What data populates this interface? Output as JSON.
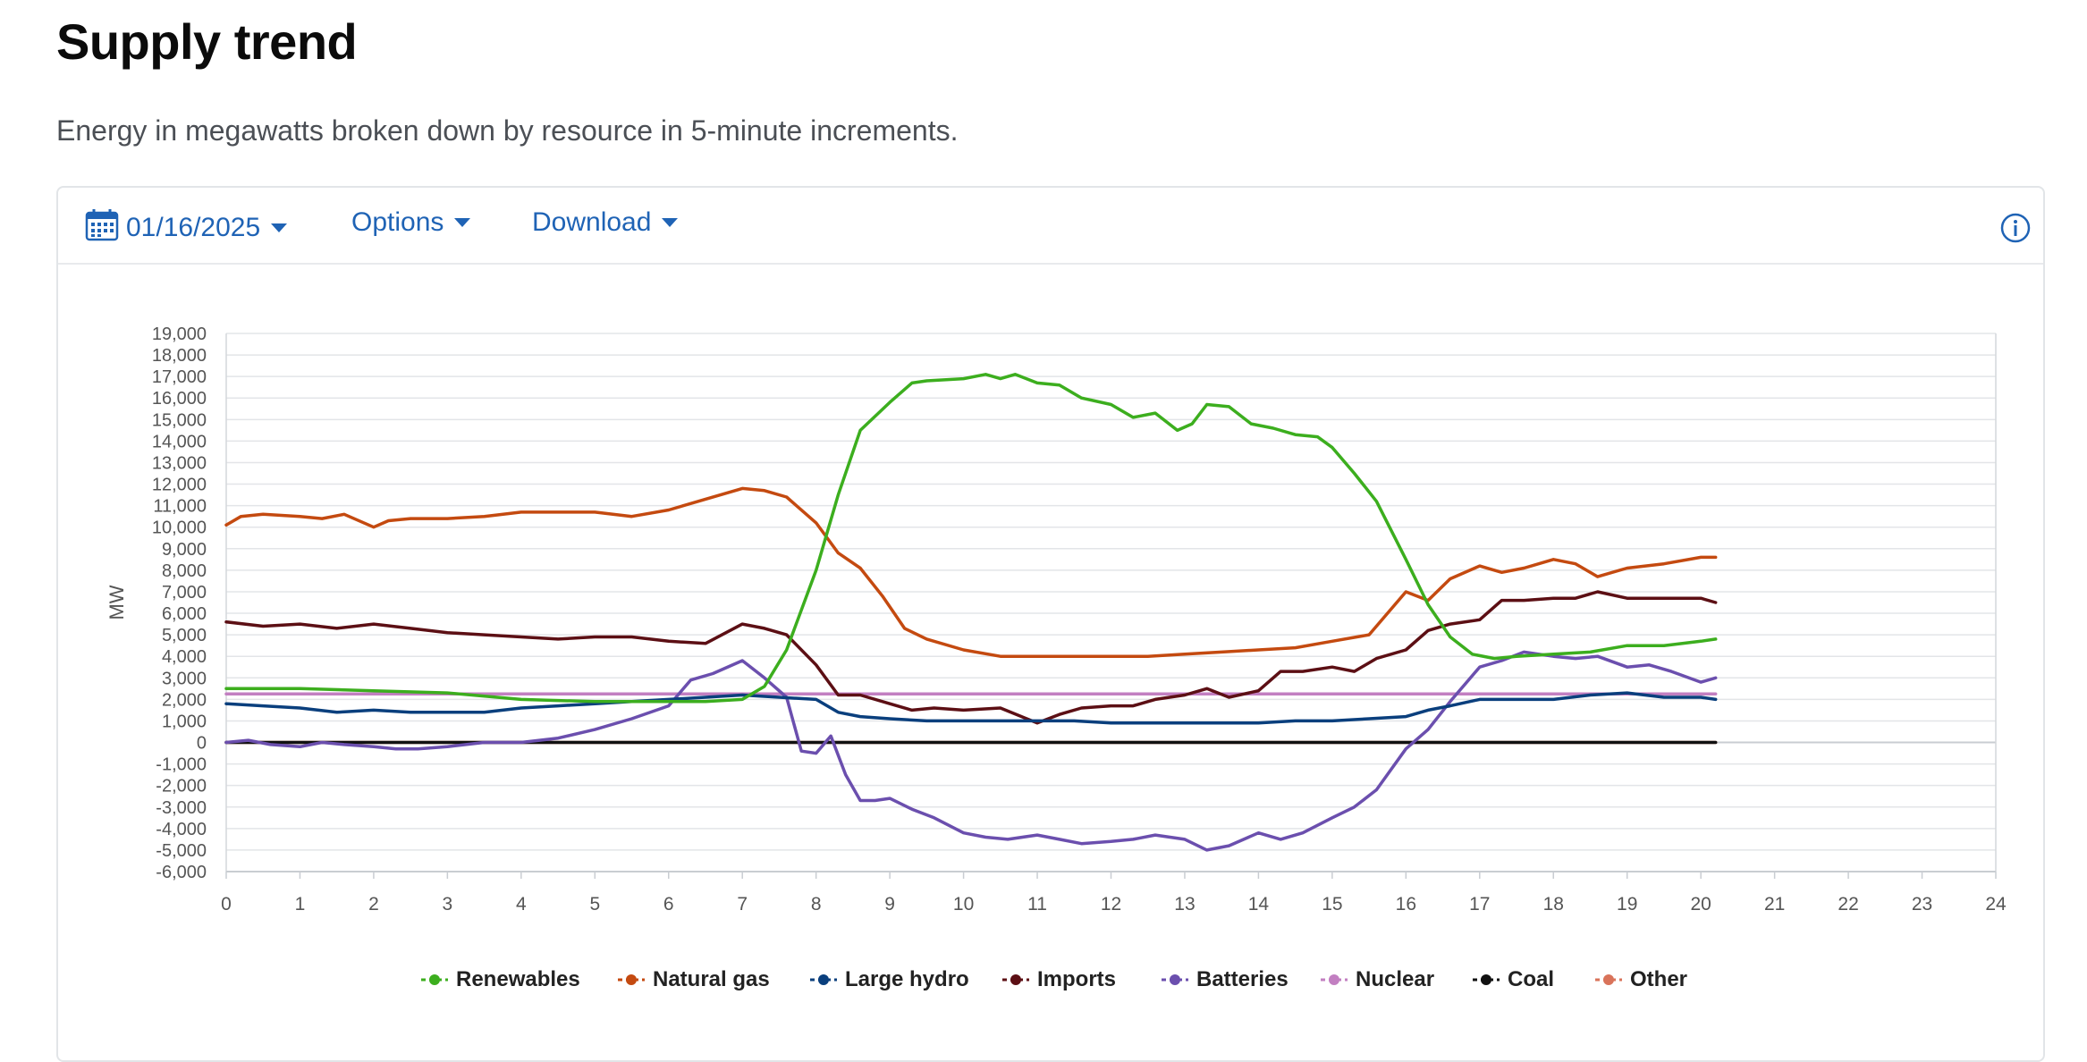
{
  "header": {
    "title": "Supply trend",
    "subtitle": "Energy in megawatts broken down by resource in 5-minute increments."
  },
  "toolbar": {
    "date": "01/16/2025",
    "options_label": "Options",
    "download_label": "Download",
    "accent_color": "#1f63b5"
  },
  "chart_data": {
    "type": "line",
    "title": "",
    "xlabel": "",
    "ylabel": "MW",
    "xlim": [
      0,
      24
    ],
    "ylim": [
      -6000,
      19000
    ],
    "x_ticks": [
      "0",
      "1",
      "2",
      "3",
      "4",
      "5",
      "6",
      "7",
      "8",
      "9",
      "10",
      "11",
      "12",
      "13",
      "14",
      "15",
      "16",
      "17",
      "18",
      "19",
      "20",
      "21",
      "22",
      "23",
      "24"
    ],
    "y_ticks": [
      "19,000",
      "18,000",
      "17,000",
      "16,000",
      "15,000",
      "14,000",
      "13,000",
      "12,000",
      "11,000",
      "10,000",
      "9,000",
      "8,000",
      "7,000",
      "6,000",
      "5,000",
      "4,000",
      "3,000",
      "2,000",
      "1,000",
      "0",
      "-1,000",
      "-2,000",
      "-3,000",
      "-4,000",
      "-5,000",
      "-6,000"
    ],
    "grid": true,
    "legend_position": "bottom-center",
    "series": [
      {
        "name": "Renewables",
        "color": "#3cae1e",
        "x": [
          0,
          1,
          2,
          3,
          4,
          5,
          6,
          6.5,
          7,
          7.3,
          7.6,
          8,
          8.3,
          8.6,
          9,
          9.3,
          9.5,
          10,
          10.3,
          10.5,
          10.7,
          11,
          11.3,
          11.6,
          12,
          12.3,
          12.6,
          12.9,
          13.1,
          13.3,
          13.6,
          13.9,
          14.2,
          14.5,
          14.8,
          15,
          15.3,
          15.6,
          16,
          16.3,
          16.6,
          16.9,
          17.2,
          17.5,
          18,
          18.5,
          19,
          19.5,
          20,
          20.2
        ],
        "y": [
          2500,
          2500,
          2400,
          2300,
          2000,
          1900,
          1900,
          1900,
          2000,
          2600,
          4300,
          8000,
          11500,
          14500,
          15800,
          16700,
          16800,
          16900,
          17100,
          16900,
          17100,
          16700,
          16600,
          16000,
          15700,
          15100,
          15300,
          14500,
          14800,
          15700,
          15600,
          14800,
          14600,
          14300,
          14200,
          13700,
          12500,
          11200,
          8500,
          6400,
          4900,
          4100,
          3900,
          4000,
          4100,
          4200,
          4500,
          4500,
          4700,
          4800
        ]
      },
      {
        "name": "Natural gas",
        "color": "#c44a10",
        "x": [
          0,
          0.2,
          0.5,
          1,
          1.3,
          1.6,
          2,
          2.2,
          2.5,
          3,
          3.5,
          4,
          4.5,
          5,
          5.5,
          6,
          6.5,
          7,
          7.3,
          7.6,
          8,
          8.3,
          8.6,
          8.9,
          9.2,
          9.5,
          10,
          10.5,
          11,
          11.5,
          12,
          12.5,
          13,
          13.5,
          14,
          14.5,
          15,
          15.5,
          16,
          16.3,
          16.6,
          17,
          17.3,
          17.6,
          18,
          18.3,
          18.6,
          19,
          19.5,
          20,
          20.2
        ],
        "y": [
          10100,
          10500,
          10600,
          10500,
          10400,
          10600,
          10000,
          10300,
          10400,
          10400,
          10500,
          10700,
          10700,
          10700,
          10500,
          10800,
          11300,
          11800,
          11700,
          11400,
          10200,
          8800,
          8100,
          6800,
          5300,
          4800,
          4300,
          4000,
          4000,
          4000,
          4000,
          4000,
          4100,
          4200,
          4300,
          4400,
          4700,
          5000,
          7000,
          6600,
          7600,
          8200,
          7900,
          8100,
          8500,
          8300,
          7700,
          8100,
          8300,
          8600,
          8600
        ]
      },
      {
        "name": "Large hydro",
        "color": "#0a3f7d",
        "x": [
          0,
          0.5,
          1,
          1.5,
          2,
          2.5,
          3,
          3.5,
          4,
          4.5,
          5,
          5.5,
          6,
          6.5,
          7,
          7.5,
          8,
          8.3,
          8.6,
          9,
          9.5,
          10,
          10.5,
          11,
          11.5,
          12,
          12.5,
          13,
          13.5,
          14,
          14.5,
          15,
          15.5,
          16,
          16.3,
          16.6,
          17,
          17.5,
          18,
          18.5,
          19,
          19.5,
          20,
          20.2
        ],
        "y": [
          1800,
          1700,
          1600,
          1400,
          1500,
          1400,
          1400,
          1400,
          1600,
          1700,
          1800,
          1900,
          2000,
          2100,
          2200,
          2100,
          2000,
          1400,
          1200,
          1100,
          1000,
          1000,
          1000,
          1000,
          1000,
          900,
          900,
          900,
          900,
          900,
          1000,
          1000,
          1100,
          1200,
          1500,
          1700,
          2000,
          2000,
          2000,
          2200,
          2300,
          2100,
          2100,
          2000
        ]
      },
      {
        "name": "Imports",
        "color": "#5c0f14",
        "x": [
          0,
          0.5,
          1,
          1.5,
          2,
          2.5,
          3,
          3.5,
          4,
          4.5,
          5,
          5.5,
          6,
          6.5,
          7,
          7.3,
          7.6,
          8,
          8.3,
          8.6,
          9,
          9.3,
          9.6,
          10,
          10.5,
          11,
          11.3,
          11.6,
          12,
          12.3,
          12.6,
          13,
          13.3,
          13.6,
          14,
          14.3,
          14.6,
          15,
          15.3,
          15.6,
          16,
          16.3,
          16.6,
          17,
          17.3,
          17.6,
          18,
          18.3,
          18.6,
          19,
          19.5,
          20,
          20.2
        ],
        "y": [
          5600,
          5400,
          5500,
          5300,
          5500,
          5300,
          5100,
          5000,
          4900,
          4800,
          4900,
          4900,
          4700,
          4600,
          5500,
          5300,
          5000,
          3600,
          2200,
          2200,
          1800,
          1500,
          1600,
          1500,
          1600,
          900,
          1300,
          1600,
          1700,
          1700,
          2000,
          2200,
          2500,
          2100,
          2400,
          3300,
          3300,
          3500,
          3300,
          3900,
          4300,
          5200,
          5500,
          5700,
          6600,
          6600,
          6700,
          6700,
          7000,
          6700,
          6700,
          6700,
          6500
        ]
      },
      {
        "name": "Batteries",
        "color": "#6b4fae",
        "x": [
          0,
          0.3,
          0.6,
          1,
          1.3,
          1.6,
          2,
          2.3,
          2.6,
          3,
          3.5,
          4,
          4.5,
          5,
          5.5,
          6,
          6.3,
          6.6,
          7,
          7.3,
          7.6,
          7.8,
          8,
          8.2,
          8.4,
          8.6,
          8.8,
          9,
          9.3,
          9.6,
          10,
          10.3,
          10.6,
          11,
          11.3,
          11.6,
          12,
          12.3,
          12.6,
          13,
          13.3,
          13.6,
          14,
          14.3,
          14.6,
          15,
          15.3,
          15.6,
          16,
          16.3,
          16.6,
          17,
          17.3,
          17.6,
          18,
          18.3,
          18.6,
          19,
          19.3,
          19.6,
          20,
          20.2
        ],
        "y": [
          0,
          100,
          -100,
          -200,
          0,
          -100,
          -200,
          -300,
          -300,
          -200,
          0,
          0,
          200,
          600,
          1100,
          1700,
          2900,
          3200,
          3800,
          3000,
          2100,
          -400,
          -500,
          300,
          -1500,
          -2700,
          -2700,
          -2600,
          -3100,
          -3500,
          -4200,
          -4400,
          -4500,
          -4300,
          -4500,
          -4700,
          -4600,
          -4500,
          -4300,
          -4500,
          -5000,
          -4800,
          -4200,
          -4500,
          -4200,
          -3500,
          -3000,
          -2200,
          -300,
          600,
          1900,
          3500,
          3800,
          4200,
          4000,
          3900,
          4000,
          3500,
          3600,
          3300,
          2800,
          3000
        ]
      },
      {
        "name": "Nuclear",
        "color": "#c27fc1",
        "x": [
          0,
          20.2
        ],
        "y": [
          2250,
          2250
        ]
      },
      {
        "name": "Coal",
        "color": "#111111",
        "x": [
          0,
          20.2
        ],
        "y": [
          0,
          0
        ]
      },
      {
        "name": "Other",
        "color": "#d9735a",
        "x": [
          0,
          20.2
        ],
        "y": [
          0,
          0
        ]
      }
    ]
  }
}
